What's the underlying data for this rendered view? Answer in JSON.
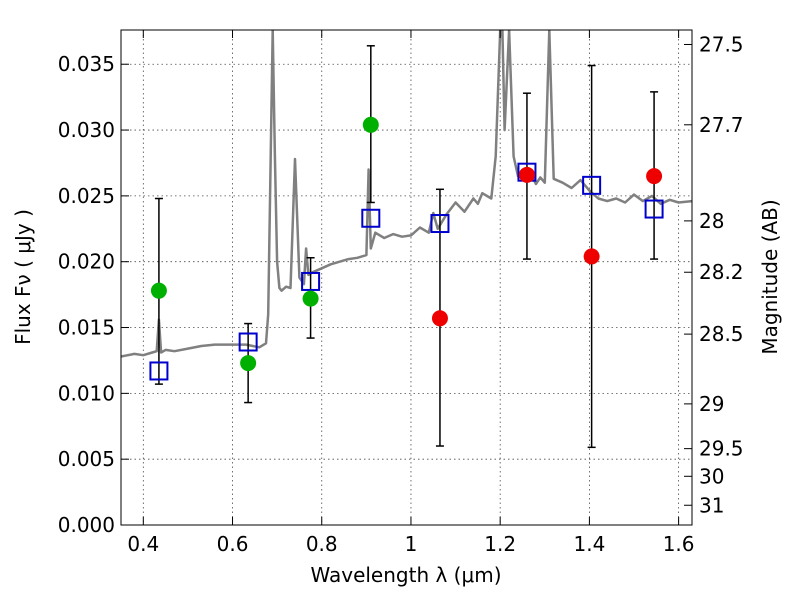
{
  "chart_data": {
    "type": "scatter",
    "title": "",
    "xlabel": "Wavelength  λ (μm)",
    "ylabel": "Flux  Fν  ( μJy )",
    "ylabel_right": "Magnitude (AB)",
    "xlim": [
      0.35,
      1.63
    ],
    "ylim": [
      0.0,
      0.0376
    ],
    "grid": true,
    "x_ticks": [
      0.4,
      0.6,
      0.8,
      1.0,
      1.2,
      1.4,
      1.6
    ],
    "x_tick_labels": [
      "0.4",
      "0.6",
      "0.8",
      "1",
      "1.2",
      "1.4",
      "1.6"
    ],
    "y_ticks": [
      0.0,
      0.005,
      0.01,
      0.015,
      0.02,
      0.025,
      0.03,
      0.035
    ],
    "y_tick_labels": [
      "0.000",
      "0.005",
      "0.010",
      "0.015",
      "0.020",
      "0.025",
      "0.030",
      "0.035"
    ],
    "right_ticks": [
      {
        "label": "27.5",
        "flux": 0.0365
      },
      {
        "label": "27.7",
        "flux": 0.0304
      },
      {
        "label": "28",
        "flux": 0.0231
      },
      {
        "label": "28.2",
        "flux": 0.0192
      },
      {
        "label": "28.5",
        "flux": 0.0145
      },
      {
        "label": "29",
        "flux": 0.0092
      },
      {
        "label": "29.5",
        "flux": 0.0058
      },
      {
        "label": "30",
        "flux": 0.0037
      },
      {
        "label": "31",
        "flux": 0.0015
      }
    ],
    "model_spectrum": {
      "color": "#808080",
      "x": [
        0.35,
        0.38,
        0.4,
        0.42,
        0.43,
        0.435,
        0.44,
        0.45,
        0.47,
        0.5,
        0.53,
        0.56,
        0.6,
        0.63,
        0.66,
        0.675,
        0.68,
        0.69,
        0.695,
        0.7,
        0.705,
        0.71,
        0.72,
        0.73,
        0.74,
        0.75,
        0.76,
        0.765,
        0.77,
        0.78,
        0.8,
        0.82,
        0.84,
        0.86,
        0.88,
        0.9,
        0.905,
        0.91,
        0.92,
        0.94,
        0.96,
        0.98,
        1.0,
        1.02,
        1.04,
        1.05,
        1.06,
        1.08,
        1.1,
        1.12,
        1.14,
        1.15,
        1.16,
        1.18,
        1.19,
        1.2,
        1.205,
        1.21,
        1.22,
        1.23,
        1.24,
        1.25,
        1.26,
        1.27,
        1.28,
        1.29,
        1.3,
        1.31,
        1.32,
        1.34,
        1.36,
        1.38,
        1.4,
        1.42,
        1.44,
        1.46,
        1.48,
        1.5,
        1.52,
        1.54,
        1.56,
        1.58,
        1.6,
        1.63
      ],
      "y": [
        0.0128,
        0.013,
        0.0129,
        0.0131,
        0.0132,
        0.0156,
        0.0131,
        0.0133,
        0.0132,
        0.0134,
        0.0136,
        0.0137,
        0.0137,
        0.0137,
        0.0135,
        0.0138,
        0.016,
        0.0376,
        0.028,
        0.02,
        0.018,
        0.0178,
        0.0181,
        0.018,
        0.0278,
        0.0188,
        0.0183,
        0.021,
        0.019,
        0.0192,
        0.0195,
        0.0198,
        0.02,
        0.0202,
        0.0203,
        0.0205,
        0.027,
        0.021,
        0.0222,
        0.0218,
        0.0221,
        0.0219,
        0.022,
        0.0226,
        0.0222,
        0.0237,
        0.0225,
        0.0236,
        0.0245,
        0.0238,
        0.0248,
        0.0244,
        0.0252,
        0.0248,
        0.028,
        0.0376,
        0.0376,
        0.03,
        0.0376,
        0.028,
        0.0265,
        0.0268,
        0.0262,
        0.0266,
        0.0259,
        0.0264,
        0.026,
        0.0376,
        0.0263,
        0.026,
        0.0256,
        0.0262,
        0.0254,
        0.0248,
        0.0246,
        0.0248,
        0.0245,
        0.0251,
        0.0246,
        0.025,
        0.0244,
        0.0247,
        0.0245,
        0.0246
      ]
    },
    "filter_points": {
      "color": "#0000cc",
      "marker": "open-square",
      "x": [
        0.435,
        0.635,
        0.775,
        0.91,
        1.065,
        1.26,
        1.405,
        1.545
      ],
      "y": [
        0.0117,
        0.0139,
        0.0185,
        0.0233,
        0.0229,
        0.0268,
        0.0258,
        0.024
      ]
    },
    "detections": {
      "color": "#00b000",
      "marker": "filled-circle",
      "x": [
        0.435,
        0.635,
        0.775,
        0.91
      ],
      "y": [
        0.0178,
        0.0123,
        0.0172,
        0.0304
      ],
      "yerr_low": [
        0.0107,
        0.0093,
        0.0142,
        0.0245
      ],
      "yerr_high": [
        0.0248,
        0.0153,
        0.0203,
        0.0364
      ]
    },
    "upper_limits": {
      "color": "#ee0000",
      "marker": "filled-circle",
      "x": [
        1.065,
        1.26,
        1.405,
        1.545
      ],
      "y": [
        0.0157,
        0.0266,
        0.0204,
        0.0265
      ],
      "yerr_low": [
        0.006,
        0.0202,
        0.0059,
        0.0202
      ],
      "yerr_high": [
        0.0255,
        0.0328,
        0.0349,
        0.0329
      ]
    }
  }
}
